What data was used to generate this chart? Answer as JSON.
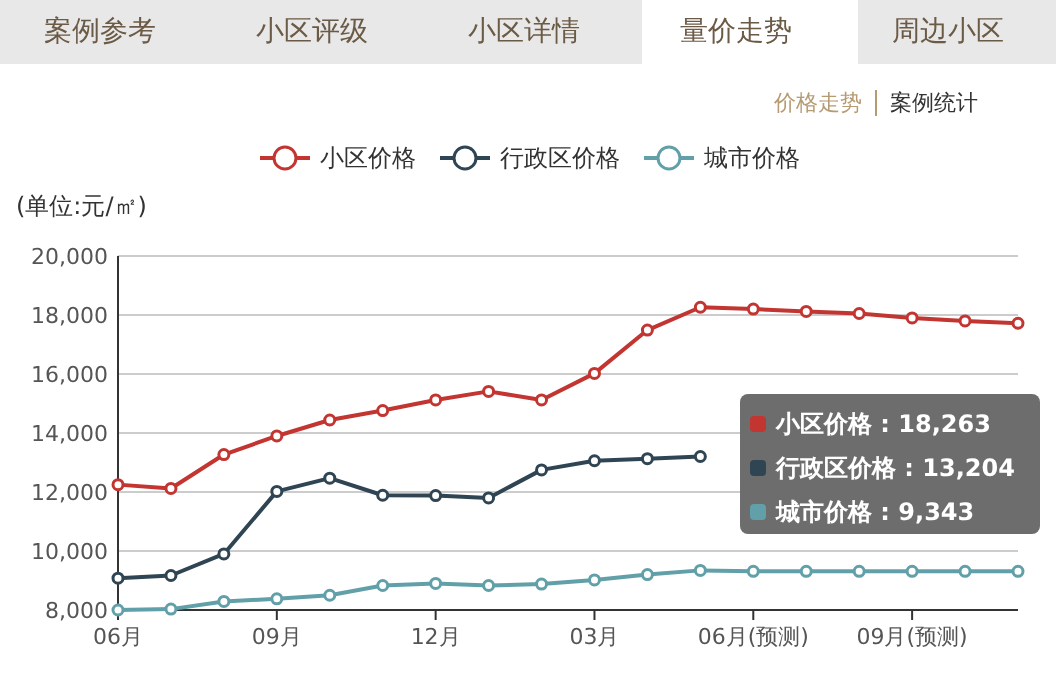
{
  "chart_data": {
    "type": "line",
    "ylabel": "(单位:元/㎡)",
    "categories": [
      "06月",
      null,
      null,
      "09月",
      null,
      null,
      "12月",
      null,
      null,
      "03月",
      null,
      null,
      "06月(预测)",
      null,
      null,
      "09月(预测)",
      null,
      null
    ],
    "series": [
      {
        "name": "小区价格",
        "color": "#c23531",
        "values": [
          12250,
          12120,
          13270,
          13900,
          14440,
          14760,
          15120,
          15410,
          15120,
          16020,
          17490,
          18263,
          18200,
          18120,
          18050,
          17900,
          17800,
          17720
        ]
      },
      {
        "name": "行政区价格",
        "color": "#2f4554",
        "values": [
          9080,
          9170,
          9900,
          12020,
          12470,
          11890,
          11880,
          11800,
          12750,
          13060,
          13130,
          13204,
          null,
          null,
          null,
          null,
          null,
          null
        ]
      },
      {
        "name": "城市价格",
        "color": "#61a0a8",
        "values": [
          8000,
          8030,
          8290,
          8380,
          8500,
          8830,
          8900,
          8830,
          8880,
          9020,
          9200,
          9343,
          9310,
          9310,
          9310,
          9310,
          9310,
          9310
        ]
      }
    ],
    "ylim": [
      8000,
      20000
    ],
    "yticks": [
      {
        "value": 8000,
        "label": "8,000"
      },
      {
        "value": 10000,
        "label": "10,000"
      },
      {
        "value": 12000,
        "label": "12,000"
      },
      {
        "value": 14000,
        "label": "14,000"
      },
      {
        "value": 16000,
        "label": "16,000"
      },
      {
        "value": 18000,
        "label": "18,000"
      },
      {
        "value": 20000,
        "label": "20,000"
      }
    ],
    "grid": "y",
    "legend": "top",
    "marker": "circle",
    "line_style": "solid",
    "annotations": [
      "案例参考",
      "小区评级",
      "小区详情",
      "量价走势",
      "周边小区",
      "价格走势",
      "案例统计",
      "小区价格 : 18,263",
      "行政区价格 : 13,204",
      "城市价格 : 9,343"
    ]
  }
}
